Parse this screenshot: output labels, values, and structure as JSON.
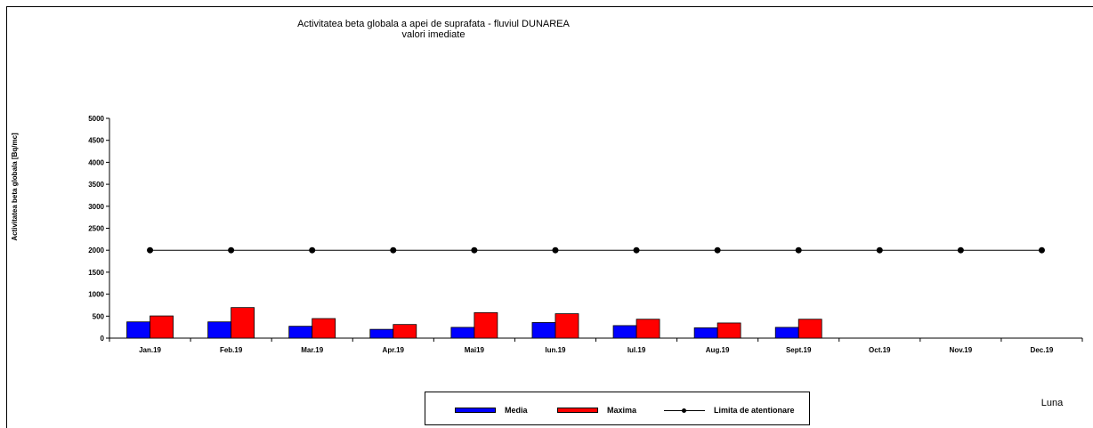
{
  "chart_data": {
    "type": "bar",
    "title": "Activitatea beta globala a apei de suprafata - fluviul DUNAREA",
    "subtitle": "valori imediate",
    "ylabel": "Activitatea beta globala [Bq/mc]",
    "xlabel": "Luna",
    "ylim": [
      0,
      5000
    ],
    "yticks": [
      "0",
      "500",
      "1000",
      "1500",
      "2000",
      "2500",
      "3000",
      "3500",
      "4000",
      "4500",
      "5000"
    ],
    "grid": false,
    "legend_position": "bottom",
    "categories": [
      "Jan.19",
      "Feb.19",
      "Mar.19",
      "Apr.19",
      "Mai19",
      "Iun.19",
      "Iul.19",
      "Aug.19",
      "Sept.19",
      "Oct.19",
      "Nov.19",
      "Dec.19"
    ],
    "series": [
      {
        "name": "Media",
        "kind": "bar",
        "color": "#0000ff",
        "values": [
          370,
          370,
          270,
          200,
          245,
          355,
          285,
          235,
          245,
          null,
          null,
          null
        ]
      },
      {
        "name": "Maxima",
        "kind": "bar",
        "color": "#ff0000",
        "values": [
          505,
          695,
          445,
          310,
          580,
          555,
          430,
          345,
          430,
          null,
          null,
          null
        ]
      },
      {
        "name": "Limita de atentionare",
        "kind": "line",
        "color": "#000000",
        "values": [
          2000,
          2000,
          2000,
          2000,
          2000,
          2000,
          2000,
          2000,
          2000,
          2000,
          2000,
          2000
        ]
      }
    ]
  }
}
